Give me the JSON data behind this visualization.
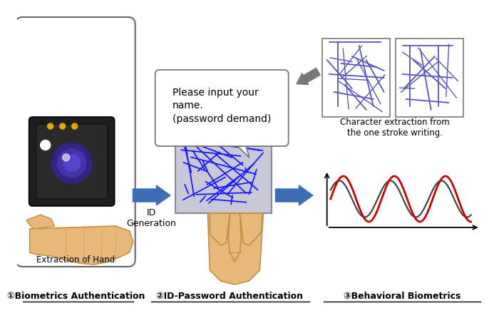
{
  "bg_color": "#ffffff",
  "label1": "①Biometrics Authentication",
  "label2": "②ID-Password Authentication",
  "label3": "③Behavioral Biometrics",
  "label_extraction": "Extraction of Hand",
  "label_id": "ID\nGeneration",
  "label_char": "Character extraction from\nthe one stroke writing.",
  "speech_text": "Please input your\nname.\n(password demand)",
  "arrow_color": "#3c6eb4",
  "scribble_color": "#1a1aff",
  "wave_red": "#cc0000",
  "wave_black": "#444444"
}
